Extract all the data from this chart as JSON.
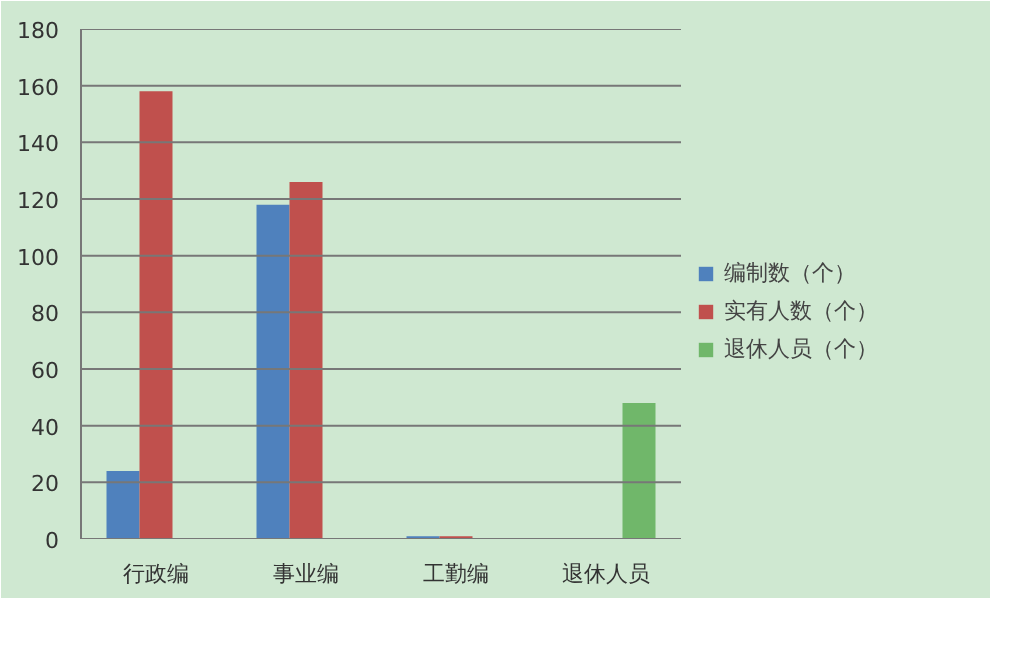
{
  "chart_data": {
    "type": "bar",
    "categories": [
      "行政编",
      "事业编",
      "工勤编",
      "退休人员"
    ],
    "series": [
      {
        "name": "编制数（个）",
        "color": "#4f81bd",
        "values": [
          24,
          118,
          1,
          null
        ]
      },
      {
        "name": "实有人数（个）",
        "color": "#c0504d",
        "values": [
          158,
          126,
          1,
          null
        ]
      },
      {
        "name": "退休人员（个）",
        "color": "#70b76a",
        "values": [
          null,
          null,
          null,
          48
        ]
      }
    ],
    "ylim": [
      0,
      180
    ],
    "yticks": [
      0,
      20,
      40,
      60,
      80,
      100,
      120,
      140,
      160,
      180
    ],
    "grid": "y",
    "legend": "right"
  }
}
